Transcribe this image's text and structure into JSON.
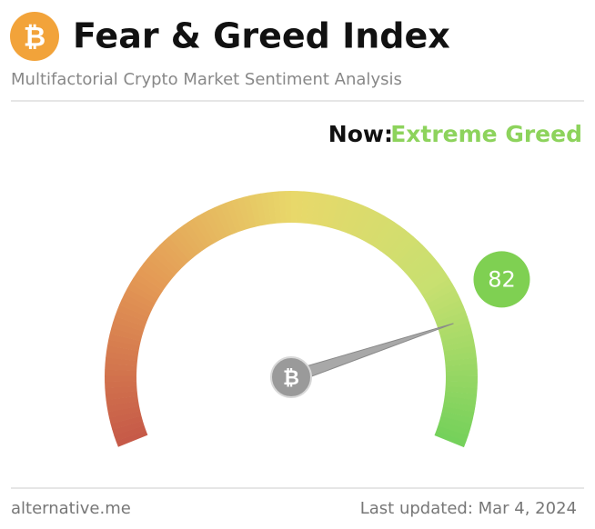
{
  "chart_data": {
    "type": "gauge",
    "logo_symbol": "₿",
    "title": "Fear & Greed Index",
    "subtitle": "Multifactorial Crypto Market Sentiment Analysis",
    "now_label": "Now:",
    "classification": "Extreme Greed",
    "classification_color": "#8dd35c",
    "value": 82,
    "value_color": "#7fd052",
    "ylim": [
      0,
      100
    ],
    "colors": [
      "#c65a48",
      "#e49a55",
      "#e8d86a",
      "#c8e070",
      "#72d05a"
    ],
    "source": "alternative.me",
    "updated": "Last updated: Mar 4, 2024"
  }
}
